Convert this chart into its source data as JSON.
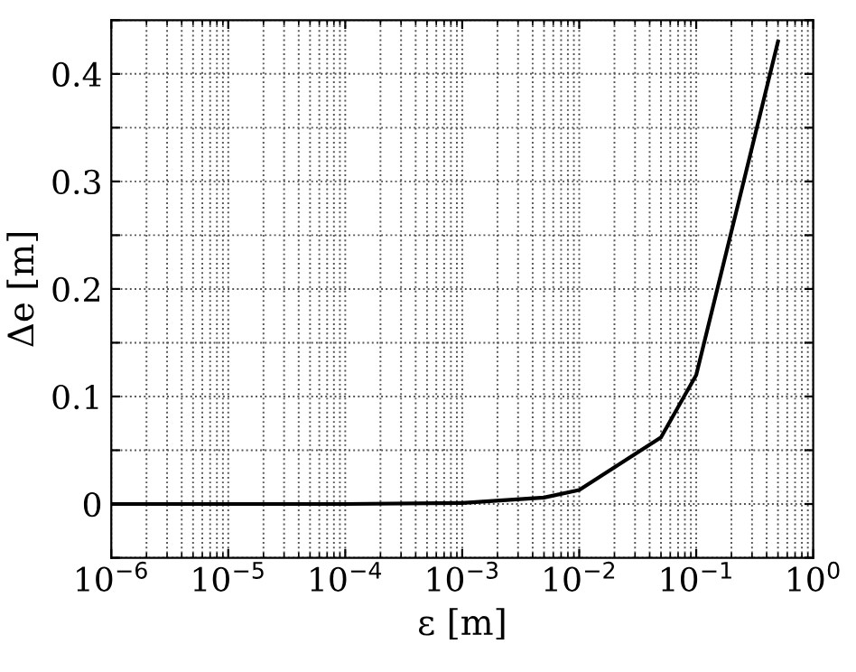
{
  "chart_data": {
    "type": "line",
    "xlabel": "ε [m]",
    "ylabel": "Δe [m]",
    "x": [
      1e-06,
      1e-05,
      0.0001,
      0.001,
      0.005,
      0.01,
      0.05,
      0.1,
      0.5
    ],
    "series": [
      {
        "color": "#000000",
        "values": [
          0,
          0,
          0,
          0.001,
          0.006,
          0.013,
          0.062,
          0.12,
          0.43
        ]
      }
    ],
    "log": "x",
    "xlim": [
      1e-06,
      1
    ],
    "xticks": [
      {
        "value": 1e-06,
        "label": "10$^{−6}$"
      },
      {
        "value": 1e-05,
        "label": "10$^{−5}$"
      },
      {
        "value": 0.0001,
        "label": "10$^{−4}$"
      },
      {
        "value": 0.001,
        "label": "10$^{−3}$"
      },
      {
        "value": 0.01,
        "label": "10$^{−2}$"
      },
      {
        "value": 0.1,
        "label": "10$^{−1}$"
      },
      {
        "value": 1,
        "label": "10$^{0}$"
      }
    ],
    "ylim": [
      -0.05,
      0.45
    ],
    "yticks": [
      {
        "value": -0.05,
        "label": null
      },
      0,
      {
        "value": 0.05,
        "label": null
      },
      0.1,
      {
        "value": 0.15,
        "label": null
      },
      0.2,
      {
        "value": 0.25,
        "label": null
      },
      0.3,
      {
        "value": 0.35,
        "label": null
      },
      0.4,
      {
        "value": 0.45,
        "label": null
      }
    ],
    "grid": true,
    "line_style": "solid",
    "marker": "none"
  }
}
